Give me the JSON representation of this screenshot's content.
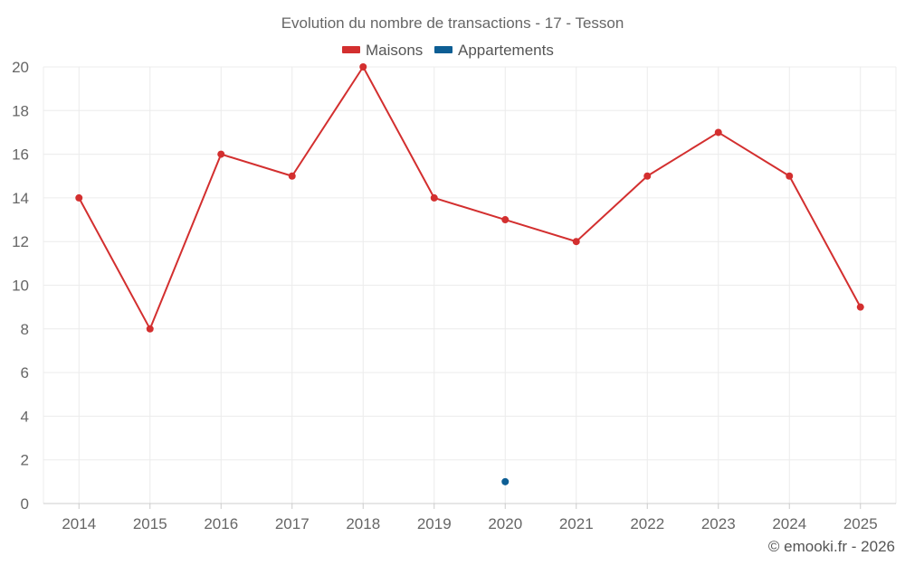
{
  "chart_data": {
    "type": "line",
    "title": "Evolution du nombre de transactions - 17 - Tesson",
    "categories": [
      "2014",
      "2015",
      "2016",
      "2017",
      "2018",
      "2019",
      "2020",
      "2021",
      "2022",
      "2023",
      "2024",
      "2025"
    ],
    "series": [
      {
        "name": "Maisons",
        "color": "#d32f2f",
        "values": [
          14,
          8,
          16,
          15,
          20,
          14,
          13,
          12,
          15,
          17,
          15,
          9
        ]
      },
      {
        "name": "Appartements",
        "color": "#0d5e94",
        "values": [
          null,
          null,
          null,
          null,
          null,
          null,
          1,
          null,
          null,
          null,
          null,
          null
        ]
      }
    ],
    "ylim": [
      0,
      20
    ],
    "yticks": [
      0,
      2,
      4,
      6,
      8,
      10,
      12,
      14,
      16,
      18,
      20
    ],
    "grid": true,
    "legend_position": "top-center"
  },
  "credit": "© emooki.fr - 2026"
}
